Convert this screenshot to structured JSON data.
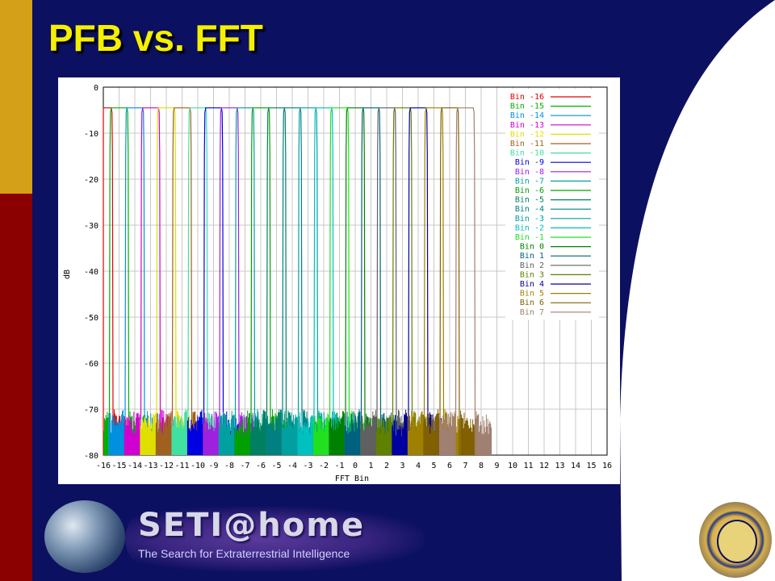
{
  "slide": {
    "title": "PFB vs. FFT",
    "footer_brand": "SETI@home",
    "footer_tagline": "The Search for Extraterrestrial Intelligence"
  },
  "colors": {
    "background": "#0c1060",
    "title": "#f4f000",
    "stripe_top": "#d4a017",
    "stripe_bottom": "#8b0000",
    "curve": "#ffffff"
  },
  "chart_data": {
    "type": "line",
    "title": "",
    "xlabel": "FFT Bin",
    "ylabel": "dB",
    "xlim": [
      -16,
      16
    ],
    "ylim": [
      -80,
      0
    ],
    "x_ticks": [
      -16,
      -15,
      -14,
      -13,
      -12,
      -11,
      -10,
      -9,
      -8,
      -7,
      -6,
      -5,
      -4,
      -3,
      -2,
      -1,
      0,
      1,
      2,
      3,
      4,
      5,
      6,
      7,
      8,
      9,
      10,
      11,
      12,
      13,
      14,
      15,
      16
    ],
    "y_ticks": [
      0,
      -10,
      -20,
      -30,
      -40,
      -50,
      -60,
      -70,
      -80
    ],
    "grid": true,
    "legend_position": "top-right",
    "passband_level_db": -4.5,
    "stopband_level_db": -70,
    "series": [
      {
        "name": "Bin -16",
        "center": -16,
        "color": "#e00000"
      },
      {
        "name": "Bin -15",
        "center": -15,
        "color": "#00b000"
      },
      {
        "name": "Bin -14",
        "center": -14,
        "color": "#0090e0"
      },
      {
        "name": "Bin -13",
        "center": -13,
        "color": "#d000d0"
      },
      {
        "name": "Bin -12",
        "center": -12,
        "color": "#e0e000"
      },
      {
        "name": "Bin -11",
        "center": -11,
        "color": "#a06020"
      },
      {
        "name": "Bin -10",
        "center": -10,
        "color": "#40e0a0"
      },
      {
        "name": "Bin -9",
        "center": -9,
        "color": "#0000e0"
      },
      {
        "name": "Bin -8",
        "center": -8,
        "color": "#a020e0"
      },
      {
        "name": "Bin -7",
        "center": -7,
        "color": "#00a0a0"
      },
      {
        "name": "Bin -6",
        "center": -6,
        "color": "#00a000"
      },
      {
        "name": "Bin -5",
        "center": -5,
        "color": "#008060"
      },
      {
        "name": "Bin -4",
        "center": -4,
        "color": "#008080"
      },
      {
        "name": "Bin -3",
        "center": -3,
        "color": "#00a0a0"
      },
      {
        "name": "Bin -2",
        "center": -2,
        "color": "#00c0c0"
      },
      {
        "name": "Bin -1",
        "center": -1,
        "color": "#20e020"
      },
      {
        "name": "Bin 0",
        "center": 0,
        "color": "#008000"
      },
      {
        "name": "Bin 1",
        "center": 1,
        "color": "#006080"
      },
      {
        "name": "Bin 2",
        "center": 2,
        "color": "#606060"
      },
      {
        "name": "Bin 3",
        "center": 3,
        "color": "#608000"
      },
      {
        "name": "Bin 4",
        "center": 4,
        "color": "#0000a0"
      },
      {
        "name": "Bin 5",
        "center": 5,
        "color": "#a08000"
      },
      {
        "name": "Bin 6",
        "center": 6,
        "color": "#806000"
      },
      {
        "name": "Bin 7",
        "center": 7,
        "color": "#a08070"
      }
    ]
  }
}
